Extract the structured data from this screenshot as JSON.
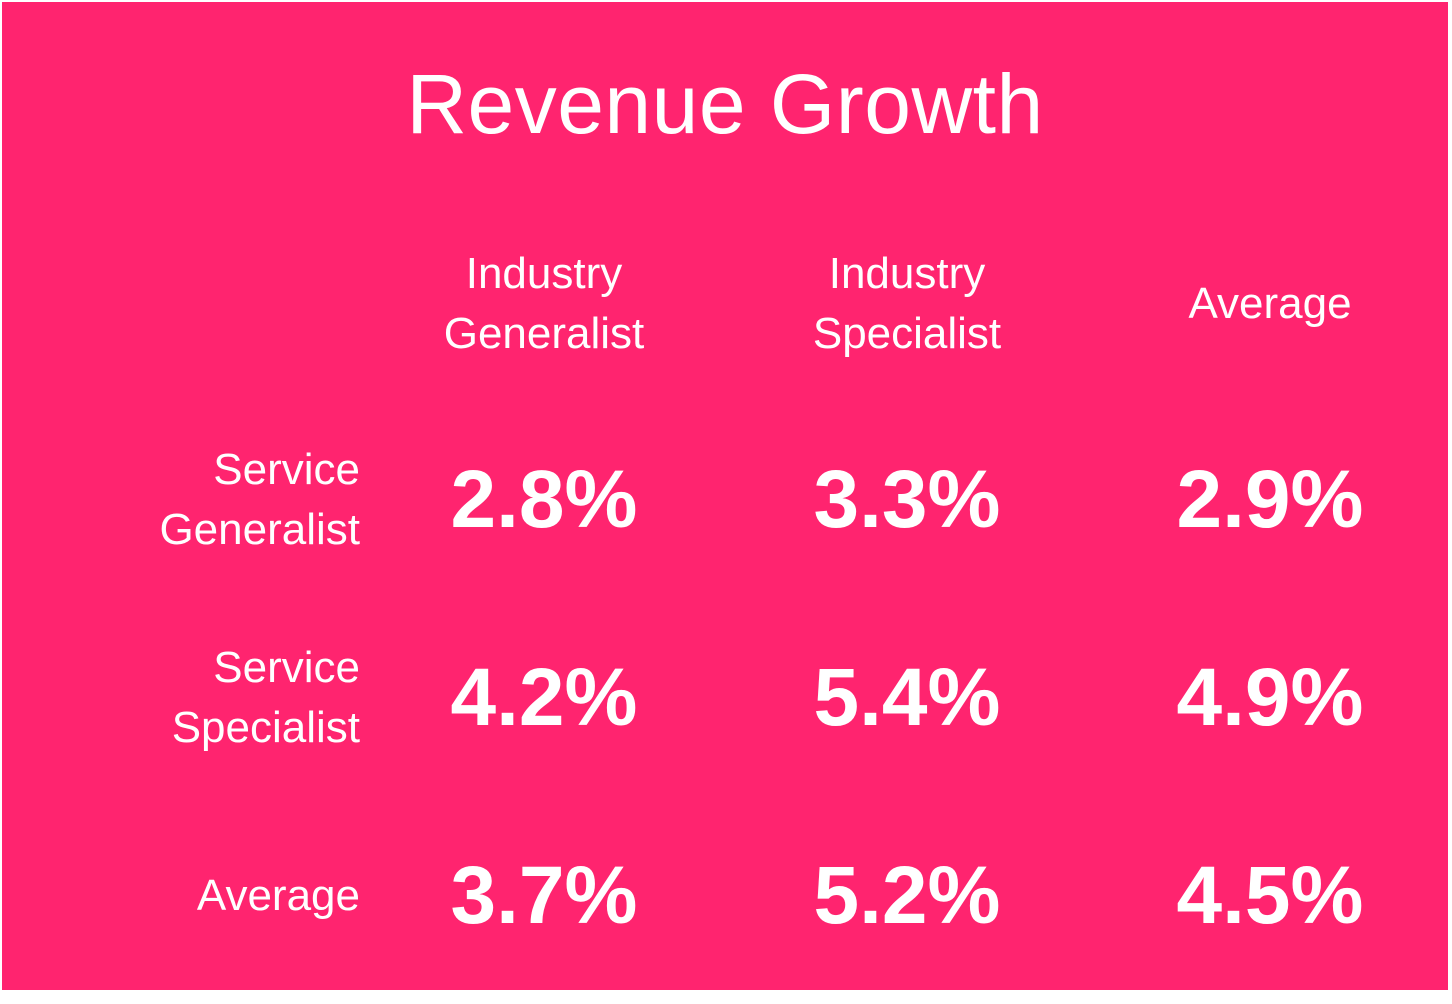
{
  "chart_data": {
    "type": "table",
    "title": "Revenue Growth",
    "columns": [
      {
        "line1": "Industry",
        "line2": "Generalist"
      },
      {
        "line1": "Industry",
        "line2": "Specialist"
      },
      {
        "line1": "Average",
        "line2": ""
      }
    ],
    "rows": [
      {
        "line1": "Service",
        "line2": "Generalist",
        "values": [
          "2.8%",
          "3.3%",
          "2.9%"
        ]
      },
      {
        "line1": "Service",
        "line2": "Specialist",
        "values": [
          "4.2%",
          "5.4%",
          "4.9%"
        ]
      },
      {
        "line1": "Average",
        "line2": "",
        "values": [
          "3.7%",
          "5.2%",
          "4.5%"
        ]
      }
    ]
  },
  "colors": {
    "background": "#ff246f",
    "text": "#ffffff"
  }
}
